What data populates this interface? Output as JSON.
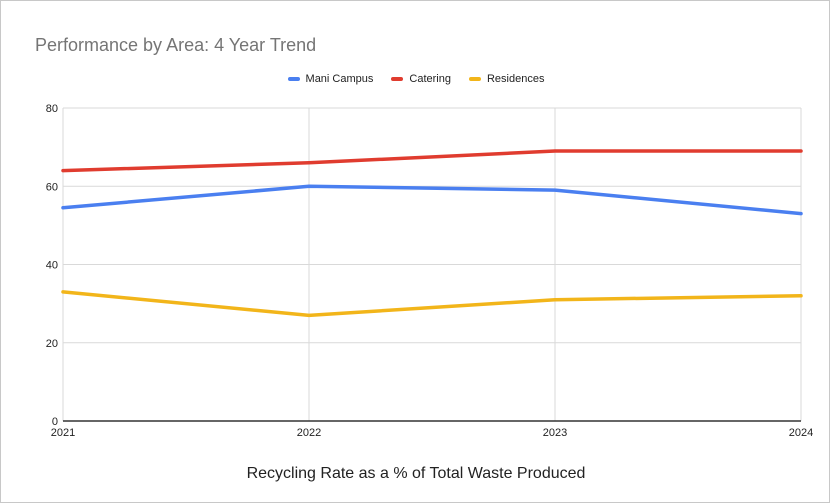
{
  "chart_data": {
    "type": "line",
    "title": "Performance by Area: 4 Year Trend",
    "xlabel": "Recycling Rate as a % of Total Waste Produced",
    "ylabel": "",
    "x": [
      "2021",
      "2022",
      "2023",
      "2024"
    ],
    "ylim": [
      0,
      80
    ],
    "yticks": [
      0,
      20,
      40,
      60,
      80
    ],
    "grid": true,
    "legend_position": "top",
    "series": [
      {
        "name": "Mani Campus",
        "color": "#4a7ff0",
        "values": [
          54.5,
          60,
          59,
          53
        ]
      },
      {
        "name": "Catering",
        "color": "#e03c2f",
        "values": [
          64,
          66,
          69,
          69
        ]
      },
      {
        "name": "Residences",
        "color": "#f2b51a",
        "values": [
          33,
          27,
          31,
          32
        ]
      }
    ]
  }
}
